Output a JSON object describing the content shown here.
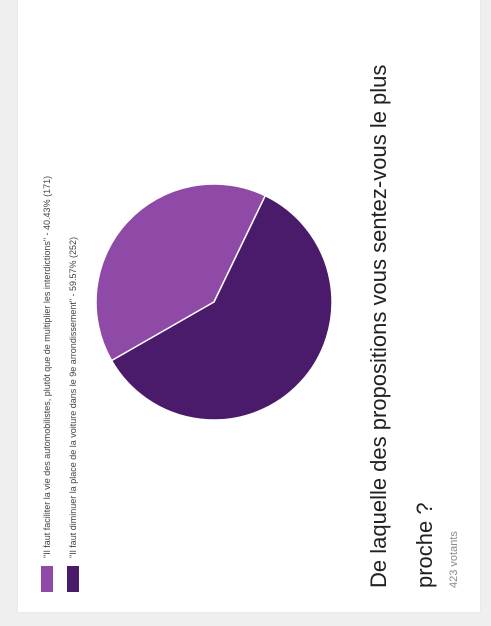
{
  "poll": {
    "question": "De laquelle des propositions vous sentez-vous le plus proche ?",
    "voters": "423 votants"
  },
  "chart_data": {
    "type": "pie",
    "title": "De laquelle des propositions vous sentez-vous le plus proche ?",
    "slices": [
      {
        "label": "\"Il faut faciliter la vie des automobilistes, plutôt que de multiplier les interdictions\" - 40.43% (171)",
        "percent": 40.43,
        "count": 171,
        "color": "#8e4aa6"
      },
      {
        "label": "\"Il faut diminuer la place de la voiture dans le 9e arrondissement\" - 59.57% (252)",
        "percent": 59.57,
        "count": 252,
        "color": "#4a1a6b"
      }
    ],
    "legend_position": "top"
  }
}
